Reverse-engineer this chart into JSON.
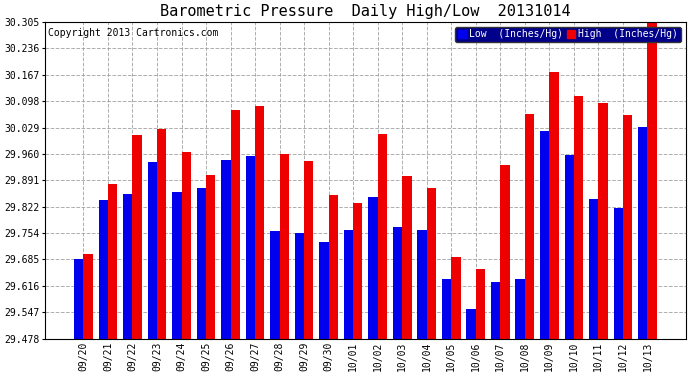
{
  "title": "Barometric Pressure  Daily High/Low  20131014",
  "copyright": "Copyright 2013 Cartronics.com",
  "legend_low": "Low  (Inches/Hg)",
  "legend_high": "High  (Inches/Hg)",
  "categories": [
    "09/20",
    "09/21",
    "09/22",
    "09/23",
    "09/24",
    "09/25",
    "09/26",
    "09/27",
    "09/28",
    "09/29",
    "09/30",
    "10/01",
    "10/02",
    "10/03",
    "10/04",
    "10/05",
    "10/06",
    "10/07",
    "10/08",
    "10/09",
    "10/10",
    "10/11",
    "10/12",
    "10/13"
  ],
  "low_values": [
    29.685,
    29.84,
    29.855,
    29.94,
    29.86,
    29.87,
    29.945,
    29.955,
    29.76,
    29.755,
    29.73,
    29.762,
    29.848,
    29.77,
    29.762,
    29.635,
    29.555,
    29.625,
    29.635,
    30.02,
    29.958,
    29.842,
    29.82,
    30.03
  ],
  "high_values": [
    29.7,
    29.882,
    30.01,
    30.025,
    29.965,
    29.905,
    30.075,
    30.085,
    29.96,
    29.942,
    29.852,
    29.832,
    30.012,
    29.902,
    29.872,
    29.692,
    29.66,
    29.932,
    30.065,
    30.175,
    30.112,
    30.092,
    30.062,
    30.315
  ],
  "ylim_min": 29.478,
  "ylim_max": 30.305,
  "yticks": [
    29.478,
    29.547,
    29.616,
    29.685,
    29.754,
    29.822,
    29.891,
    29.96,
    30.029,
    30.098,
    30.167,
    30.236,
    30.305
  ],
  "low_color": "#0000ee",
  "high_color": "#ee0000",
  "bg_color": "#ffffff",
  "grid_color": "#999999",
  "title_fontsize": 11,
  "tick_fontsize": 7,
  "copyright_fontsize": 7,
  "bar_width": 0.38
}
